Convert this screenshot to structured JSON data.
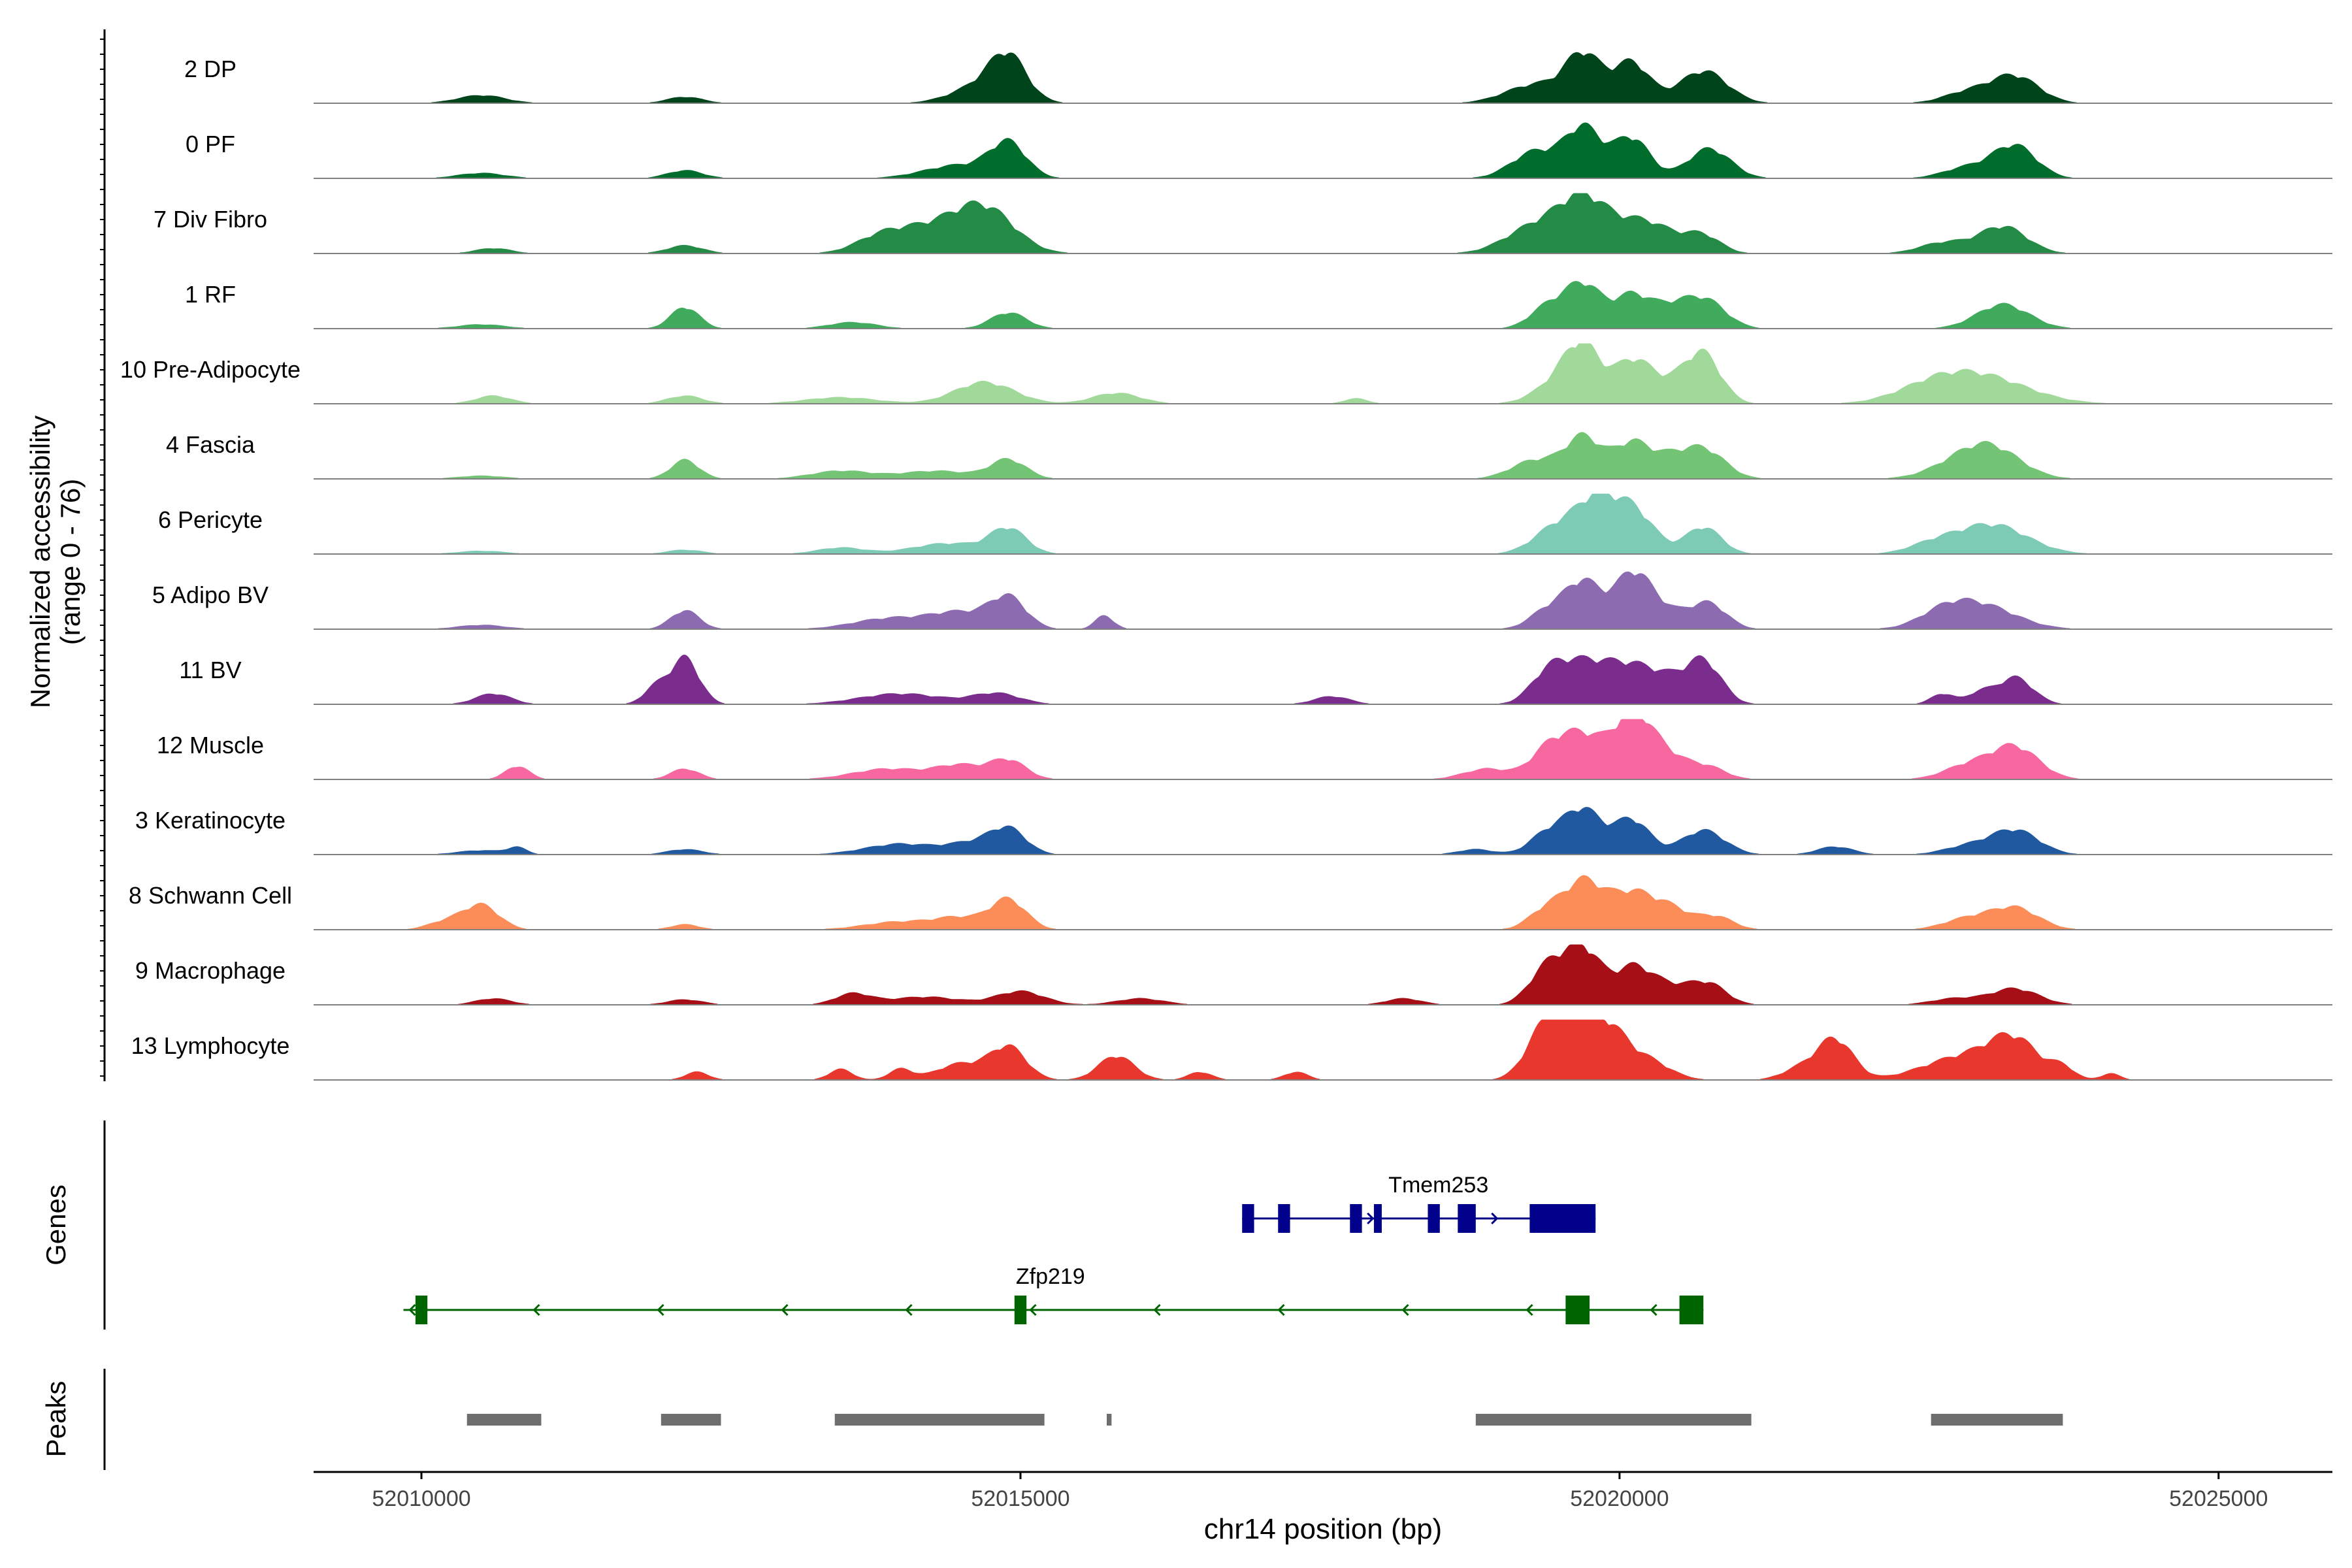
{
  "chart_data": {
    "type": "area",
    "chromosome": "chr14",
    "xlabel": "chr14 position (bp)",
    "ylabel_line1": "Normalized accessibility",
    "ylabel_line2": "(range 0 - 76)",
    "y_range": [
      0,
      76
    ],
    "xlim": [
      52009100,
      52025950
    ],
    "x_ticks": [
      52010000,
      52015000,
      52020000,
      52025000
    ],
    "x_tick_labels": [
      "52010000",
      "52015000",
      "52020000",
      "52025000"
    ],
    "grid": false,
    "tracks": [
      {
        "name": "2 DP",
        "color": "#00441b",
        "peaks": [
          [
            52010500,
            200,
            0.15
          ],
          [
            52012200,
            150,
            0.12
          ],
          [
            52014900,
            150,
            0.7
          ],
          [
            52014700,
            250,
            0.35
          ],
          [
            52019700,
            150,
            0.85
          ],
          [
            52019300,
            250,
            0.35
          ],
          [
            52020100,
            150,
            0.75
          ],
          [
            52020700,
            200,
            0.6
          ],
          [
            52023300,
            200,
            0.5
          ],
          [
            52022900,
            200,
            0.2
          ]
        ]
      },
      {
        "name": "0 PF",
        "color": "#006d2c",
        "peaks": [
          [
            52010500,
            200,
            0.1
          ],
          [
            52012200,
            150,
            0.15
          ],
          [
            52014900,
            150,
            0.6
          ],
          [
            52014500,
            300,
            0.25
          ],
          [
            52019700,
            150,
            0.9
          ],
          [
            52019300,
            200,
            0.5
          ],
          [
            52020100,
            150,
            0.75
          ],
          [
            52020750,
            180,
            0.55
          ],
          [
            52023300,
            180,
            0.6
          ],
          [
            52022900,
            200,
            0.2
          ]
        ]
      },
      {
        "name": "7 Div Fibro",
        "color": "#238b45",
        "peaks": [
          [
            52010600,
            150,
            0.1
          ],
          [
            52012200,
            150,
            0.15
          ],
          [
            52014700,
            250,
            0.8
          ],
          [
            52014200,
            300,
            0.45
          ],
          [
            52013800,
            200,
            0.2
          ],
          [
            52019700,
            200,
            0.9
          ],
          [
            52019300,
            250,
            0.5
          ],
          [
            52020200,
            250,
            0.6
          ],
          [
            52020700,
            150,
            0.3
          ],
          [
            52023200,
            200,
            0.5
          ],
          [
            52022700,
            200,
            0.2
          ]
        ]
      },
      {
        "name": "1 RF",
        "color": "#41ab5d",
        "peaks": [
          [
            52010500,
            200,
            0.08
          ],
          [
            52012200,
            120,
            0.4
          ],
          [
            52013600,
            200,
            0.12
          ],
          [
            52014900,
            150,
            0.3
          ],
          [
            52019700,
            150,
            0.8
          ],
          [
            52019400,
            150,
            0.4
          ],
          [
            52020100,
            150,
            0.6
          ],
          [
            52020700,
            180,
            0.55
          ],
          [
            52020400,
            150,
            0.3
          ],
          [
            52023200,
            220,
            0.45
          ]
        ]
      },
      {
        "name": "10 Pre-Adipocyte",
        "color": "#a1d99b",
        "peaks": [
          [
            52010600,
            150,
            0.15
          ],
          [
            52012200,
            150,
            0.15
          ],
          [
            52013500,
            300,
            0.12
          ],
          [
            52014700,
            250,
            0.4
          ],
          [
            52015800,
            200,
            0.2
          ],
          [
            52017800,
            100,
            0.1
          ],
          [
            52019700,
            150,
            0.9
          ],
          [
            52019500,
            200,
            0.4
          ],
          [
            52020100,
            150,
            0.7
          ],
          [
            52020700,
            150,
            0.85
          ],
          [
            52020400,
            200,
            0.35
          ],
          [
            52023000,
            400,
            0.5
          ],
          [
            52022600,
            300,
            0.2
          ]
        ]
      },
      {
        "name": "4 Fascia",
        "color": "#74c476",
        "peaks": [
          [
            52010500,
            200,
            0.06
          ],
          [
            52012200,
            120,
            0.35
          ],
          [
            52013500,
            250,
            0.15
          ],
          [
            52014900,
            150,
            0.35
          ],
          [
            52014300,
            300,
            0.15
          ],
          [
            52019700,
            150,
            0.75
          ],
          [
            52019300,
            200,
            0.35
          ],
          [
            52020100,
            150,
            0.65
          ],
          [
            52020700,
            180,
            0.55
          ],
          [
            52020400,
            150,
            0.3
          ],
          [
            52023100,
            250,
            0.55
          ],
          [
            52022800,
            250,
            0.2
          ]
        ]
      },
      {
        "name": "6 Pericyte",
        "color": "#7ecbb5",
        "peaks": [
          [
            52010500,
            200,
            0.06
          ],
          [
            52012200,
            150,
            0.08
          ],
          [
            52013500,
            200,
            0.12
          ],
          [
            52014900,
            150,
            0.45
          ],
          [
            52014400,
            300,
            0.2
          ],
          [
            52019500,
            200,
            0.55
          ],
          [
            52019800,
            150,
            0.75
          ],
          [
            52020100,
            180,
            0.85
          ],
          [
            52020700,
            150,
            0.5
          ],
          [
            52023100,
            300,
            0.55
          ],
          [
            52022600,
            200,
            0.15
          ]
        ]
      },
      {
        "name": "5 Adipo BV",
        "color": "#8c6bb1",
        "peaks": [
          [
            52010500,
            200,
            0.08
          ],
          [
            52012200,
            120,
            0.35
          ],
          [
            52013900,
            300,
            0.2
          ],
          [
            52014900,
            150,
            0.55
          ],
          [
            52014500,
            250,
            0.3
          ],
          [
            52015700,
            80,
            0.25
          ],
          [
            52019700,
            150,
            0.85
          ],
          [
            52019400,
            150,
            0.35
          ],
          [
            52020100,
            150,
            0.9
          ],
          [
            52020350,
            200,
            0.35
          ],
          [
            52020750,
            150,
            0.45
          ],
          [
            52023000,
            300,
            0.45
          ],
          [
            52022700,
            200,
            0.2
          ]
        ]
      },
      {
        "name": "11 BV",
        "color": "#7b2d8e",
        "peaks": [
          [
            52010600,
            150,
            0.2
          ],
          [
            52012200,
            120,
            0.85
          ],
          [
            52011950,
            100,
            0.3
          ],
          [
            52014000,
            350,
            0.2
          ],
          [
            52014800,
            200,
            0.2
          ],
          [
            52017600,
            150,
            0.15
          ],
          [
            52019700,
            200,
            0.7
          ],
          [
            52019400,
            150,
            0.5
          ],
          [
            52020100,
            200,
            0.65
          ],
          [
            52020700,
            150,
            0.8
          ],
          [
            52020400,
            150,
            0.3
          ],
          [
            52022700,
            100,
            0.2
          ],
          [
            52023300,
            150,
            0.5
          ],
          [
            52023000,
            100,
            0.2
          ]
        ]
      },
      {
        "name": "12 Muscle",
        "color": "#f768a1",
        "peaks": [
          [
            52010800,
            100,
            0.25
          ],
          [
            52012200,
            120,
            0.2
          ],
          [
            52013900,
            300,
            0.2
          ],
          [
            52014900,
            150,
            0.35
          ],
          [
            52014500,
            200,
            0.25
          ],
          [
            52019700,
            180,
            0.8
          ],
          [
            52019400,
            150,
            0.5
          ],
          [
            52020100,
            150,
            1.0
          ],
          [
            52020350,
            200,
            0.5
          ],
          [
            52020750,
            150,
            0.2
          ],
          [
            52018900,
            200,
            0.2
          ],
          [
            52023300,
            200,
            0.6
          ],
          [
            52022900,
            200,
            0.25
          ]
        ]
      },
      {
        "name": "3 Keratinocyte",
        "color": "#2159a0",
        "peaks": [
          [
            52010500,
            200,
            0.08
          ],
          [
            52010800,
            80,
            0.12
          ],
          [
            52012200,
            150,
            0.1
          ],
          [
            52014000,
            300,
            0.2
          ],
          [
            52014900,
            150,
            0.45
          ],
          [
            52014600,
            200,
            0.2
          ],
          [
            52019700,
            150,
            0.8
          ],
          [
            52019400,
            150,
            0.4
          ],
          [
            52020100,
            150,
            0.65
          ],
          [
            52020700,
            180,
            0.45
          ],
          [
            52018800,
            150,
            0.1
          ],
          [
            52021800,
            150,
            0.15
          ],
          [
            52023300,
            200,
            0.45
          ],
          [
            52022900,
            200,
            0.15
          ]
        ]
      },
      {
        "name": "8 Schwann Cell",
        "color": "#fc8d59",
        "peaks": [
          [
            52010500,
            150,
            0.45
          ],
          [
            52010200,
            150,
            0.15
          ],
          [
            52012200,
            120,
            0.1
          ],
          [
            52014000,
            300,
            0.15
          ],
          [
            52014900,
            150,
            0.55
          ],
          [
            52014500,
            200,
            0.2
          ],
          [
            52019700,
            150,
            0.8
          ],
          [
            52019400,
            150,
            0.4
          ],
          [
            52020100,
            200,
            0.7
          ],
          [
            52020450,
            150,
            0.3
          ],
          [
            52020800,
            150,
            0.25
          ],
          [
            52023300,
            200,
            0.4
          ],
          [
            52022900,
            200,
            0.2
          ]
        ]
      },
      {
        "name": "9 Macrophage",
        "color": "#a50f15",
        "peaks": [
          [
            52010600,
            150,
            0.12
          ],
          [
            52012200,
            150,
            0.1
          ],
          [
            52013600,
            150,
            0.2
          ],
          [
            52014200,
            300,
            0.15
          ],
          [
            52015000,
            200,
            0.25
          ],
          [
            52016000,
            200,
            0.12
          ],
          [
            52019700,
            150,
            1.0
          ],
          [
            52019400,
            150,
            0.7
          ],
          [
            52020100,
            150,
            0.6
          ],
          [
            52020400,
            200,
            0.35
          ],
          [
            52020750,
            150,
            0.35
          ],
          [
            52018200,
            150,
            0.12
          ],
          [
            52023300,
            200,
            0.3
          ],
          [
            52022800,
            200,
            0.12
          ]
        ]
      },
      {
        "name": "13 Lymphocyte",
        "color": "#e8382e",
        "peaks": [
          [
            52012300,
            100,
            0.15
          ],
          [
            52013500,
            100,
            0.2
          ],
          [
            52014000,
            100,
            0.2
          ],
          [
            52014900,
            150,
            0.6
          ],
          [
            52014500,
            200,
            0.3
          ],
          [
            52015800,
            150,
            0.45
          ],
          [
            52016500,
            100,
            0.15
          ],
          [
            52017300,
            100,
            0.15
          ],
          [
            52019600,
            180,
            1.0
          ],
          [
            52019350,
            150,
            0.7
          ],
          [
            52019900,
            150,
            0.75
          ],
          [
            52020200,
            200,
            0.4
          ],
          [
            52021800,
            150,
            0.75
          ],
          [
            52021500,
            150,
            0.2
          ],
          [
            52022900,
            350,
            0.45
          ],
          [
            52023300,
            200,
            0.6
          ],
          [
            52023700,
            100,
            0.2
          ],
          [
            52024100,
            80,
            0.12
          ]
        ]
      }
    ],
    "genes_label": "Genes",
    "genes": [
      {
        "name": "Tmem253",
        "strand": "+",
        "color": "#00008b",
        "start": 52016850,
        "end": 52019800,
        "exons": [
          [
            52016850,
            52016950
          ],
          [
            52017150,
            52017250
          ],
          [
            52017750,
            52017850
          ],
          [
            52017950,
            52018000
          ],
          [
            52018400,
            52018500
          ],
          [
            52018650,
            52018800
          ],
          [
            52019250,
            52019800
          ]
        ]
      },
      {
        "name": "Zfp219",
        "strand": "-",
        "color": "#006400",
        "start": 52009850,
        "end": 52020700,
        "exons": [
          [
            52009950,
            52010050
          ],
          [
            52014950,
            52015050
          ],
          [
            52019550,
            52019750
          ],
          [
            52020500,
            52020700
          ]
        ]
      }
    ],
    "peaks_label": "Peaks",
    "peak_regions": [
      [
        52010380,
        52011000
      ],
      [
        52012000,
        52012500
      ],
      [
        52013450,
        52015200
      ],
      [
        52015720,
        52015760
      ],
      [
        52018800,
        52021100
      ],
      [
        52022600,
        52023700
      ]
    ]
  }
}
